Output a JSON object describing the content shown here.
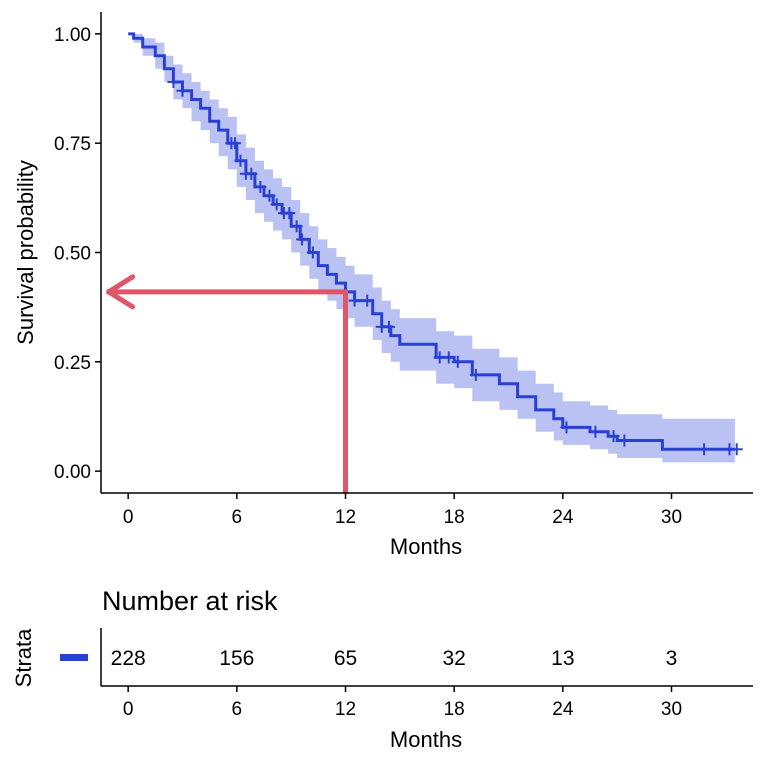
{
  "chart_data": [
    {
      "type": "line",
      "subtype": "kaplan-meier",
      "title": "",
      "xlabel": "Months",
      "ylabel": "Survival probability",
      "xlim": [
        -1.5,
        34.5
      ],
      "ylim": [
        -0.05,
        1.05
      ],
      "xticks": [
        0,
        6,
        12,
        18,
        24,
        30
      ],
      "xtick_labels": [
        "0",
        "6",
        "12",
        "18",
        "24",
        "30"
      ],
      "yticks": [
        0,
        0.25,
        0.5,
        0.75,
        1
      ],
      "ytick_labels": [
        "0.00",
        "0.25",
        "0.50",
        "0.75",
        "1.00"
      ],
      "grid": false,
      "legend": "none",
      "colors": {
        "curve": "#2940d3",
        "ci_band": "#b9c2f3",
        "annotation_arrow": "#e05568"
      },
      "series": [
        {
          "x": [
            0,
            0.3,
            0.8,
            1.5,
            2,
            2.5,
            3,
            3.5,
            4,
            4.5,
            5,
            5.5,
            6,
            6.5,
            7,
            7.5,
            8,
            8.5,
            9,
            9.5,
            10,
            10.5,
            11,
            11.5,
            12,
            12.5,
            13.5,
            14,
            14.5,
            15,
            16.5,
            17,
            18,
            19,
            20.5,
            21.5,
            22.5,
            23.5,
            24,
            25.5,
            26.5,
            27,
            29.5,
            33.5
          ],
          "y": [
            1.0,
            0.99,
            0.97,
            0.95,
            0.92,
            0.89,
            0.87,
            0.85,
            0.83,
            0.8,
            0.78,
            0.75,
            0.71,
            0.68,
            0.65,
            0.63,
            0.61,
            0.59,
            0.56,
            0.53,
            0.5,
            0.47,
            0.45,
            0.43,
            0.41,
            0.39,
            0.36,
            0.33,
            0.31,
            0.29,
            0.29,
            0.26,
            0.25,
            0.22,
            0.2,
            0.17,
            0.14,
            0.12,
            0.1,
            0.09,
            0.08,
            0.07,
            0.05,
            0.05
          ],
          "lower": [
            1.0,
            0.98,
            0.95,
            0.92,
            0.89,
            0.85,
            0.83,
            0.8,
            0.78,
            0.75,
            0.72,
            0.69,
            0.65,
            0.62,
            0.59,
            0.57,
            0.55,
            0.53,
            0.5,
            0.47,
            0.44,
            0.41,
            0.39,
            0.37,
            0.35,
            0.33,
            0.3,
            0.27,
            0.25,
            0.23,
            0.23,
            0.2,
            0.19,
            0.16,
            0.14,
            0.12,
            0.09,
            0.07,
            0.06,
            0.05,
            0.04,
            0.03,
            0.02,
            0.02
          ],
          "upper": [
            1.0,
            1.0,
            0.99,
            0.98,
            0.95,
            0.93,
            0.91,
            0.89,
            0.87,
            0.85,
            0.83,
            0.81,
            0.77,
            0.74,
            0.71,
            0.69,
            0.67,
            0.65,
            0.62,
            0.59,
            0.56,
            0.53,
            0.51,
            0.49,
            0.47,
            0.45,
            0.42,
            0.39,
            0.37,
            0.35,
            0.35,
            0.32,
            0.31,
            0.28,
            0.26,
            0.23,
            0.2,
            0.18,
            0.16,
            0.15,
            0.14,
            0.13,
            0.12,
            0.12
          ],
          "censor_x": [
            2.5,
            3,
            5.7,
            5.9,
            6.2,
            6.5,
            6.8,
            7.3,
            7.8,
            8.2,
            8.6,
            8.9,
            9.3,
            9.6,
            10.2,
            12.5,
            13.2,
            14,
            14.4,
            17.2,
            17.7,
            18.2,
            19.2,
            24.2,
            25.8,
            26.8,
            27.4,
            31.8,
            33.2,
            33.6
          ]
        }
      ],
      "annotations": [
        {
          "type": "arrow",
          "from": [
            12,
            0
          ],
          "via": [
            12,
            0.41
          ],
          "to": [
            -1.3,
            0.41
          ]
        }
      ]
    },
    {
      "type": "table",
      "title": "Number at risk",
      "ylabel": "Strata",
      "xlabel": "Months",
      "x": [
        0,
        6,
        12,
        18,
        24,
        30
      ],
      "xtick_labels": [
        "0",
        "6",
        "12",
        "18",
        "24",
        "30"
      ],
      "xlim": [
        -1.5,
        34.5
      ],
      "values": [
        "228",
        "156",
        "65",
        "32",
        "13",
        "3"
      ],
      "strata_color": "#2940d3"
    }
  ]
}
